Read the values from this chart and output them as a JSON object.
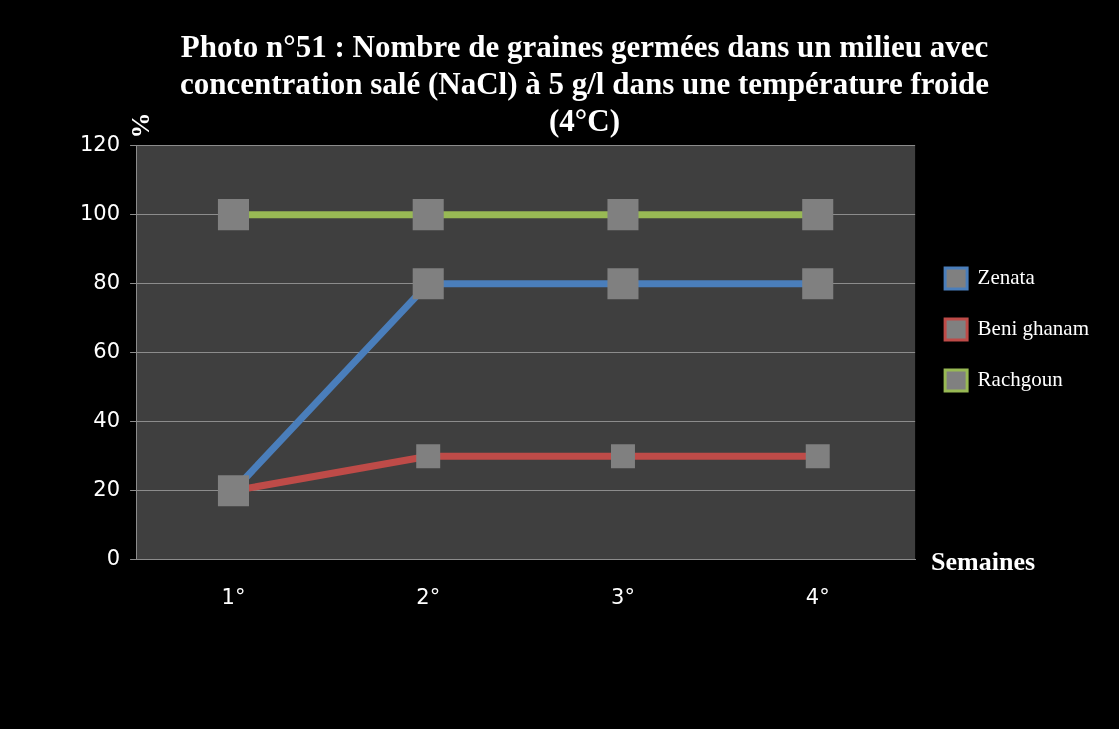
{
  "chart_data": {
    "type": "line",
    "title": "Photo n°51 : Nombre de graines germées dans un milieu avec concentration salé (NaCl) à 5 g/l dans une température froide (4°C)",
    "xlabel": "Semaines",
    "ylabel": "%",
    "categories": [
      "1°",
      "2°",
      "3°",
      "4°"
    ],
    "series": [
      {
        "name": "Zenata",
        "color": "#4a7ebb",
        "values": [
          20,
          80,
          80,
          80
        ]
      },
      {
        "name": "Beni ghanam",
        "color": "#be4b48",
        "values": [
          20,
          30,
          30,
          30
        ]
      },
      {
        "name": "Rachgoun",
        "color": "#98b954",
        "values": [
          100,
          100,
          100,
          100
        ]
      }
    ],
    "ylim": [
      0,
      120
    ],
    "yticks": [
      0,
      20,
      40,
      60,
      80,
      100,
      120
    ],
    "grid": "y",
    "legend": "right",
    "marker": "square"
  }
}
